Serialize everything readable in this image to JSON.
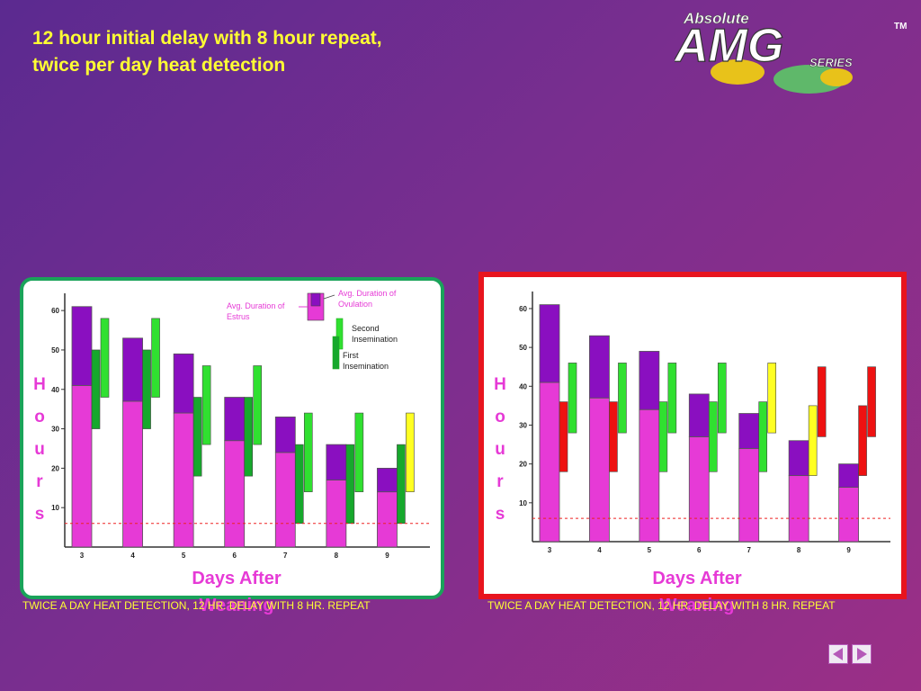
{
  "header": {
    "title_line1": "12 hour initial delay with 8 hour repeat,",
    "title_line2": "twice per day heat detection"
  },
  "logo": {
    "top": "Absolute",
    "main": "AMG",
    "sub": "SERIES",
    "tm": "TM"
  },
  "axis_labels": {
    "hours_letters": [
      "H",
      "o",
      "u",
      "r",
      "s"
    ],
    "days_line1": "Days After",
    "days_line2": "Weaning"
  },
  "legend": {
    "estrus": "Avg. Duration of Estrus",
    "ovulation": "Avg. Duration of Ovulation",
    "second": "Second Insemination",
    "first": "First Insemination"
  },
  "captions": {
    "left": "TWICE A DAY HEAT DETECTION, 12 HR. DELAY WITH 8 HR. REPEAT",
    "right": "TWICE A DAY HEAT DETECTION, 12 HR. DELAY WITH 8 HR. REPEAT"
  },
  "colors": {
    "estrus_pink": "#e63ad6",
    "ovulation_purple": "#8a0fc0",
    "first_green": "#16a82c",
    "second_green": "#30e030",
    "yellow": "#ffff22",
    "red": "#ee1111",
    "threshold": "#ee2222"
  },
  "chart_data": [
    {
      "type": "bar",
      "ylim": [
        0,
        63
      ],
      "yticks": [
        10,
        20,
        30,
        40,
        50,
        60
      ],
      "ytick_labels": [
        "10",
        "20",
        "30",
        "40",
        "50",
        "60"
      ],
      "categories": [
        "3",
        "4",
        "5",
        "6",
        "7",
        "8",
        "9"
      ],
      "threshold": 6,
      "estrus_total": [
        61,
        53,
        49,
        38,
        33,
        26,
        20
      ],
      "estrus_lower": [
        41,
        37,
        34,
        27,
        24,
        17,
        14
      ],
      "first_insemination": [
        [
          30,
          50
        ],
        [
          30,
          50
        ],
        [
          18,
          38
        ],
        [
          18,
          38
        ],
        [
          6,
          26
        ],
        [
          6,
          26
        ],
        [
          6,
          26
        ]
      ],
      "second_insemination": [
        [
          38,
          58
        ],
        [
          38,
          58
        ],
        [
          26,
          46
        ],
        [
          26,
          46
        ],
        [
          14,
          34
        ],
        [
          14,
          34
        ],
        [
          14,
          34
        ]
      ],
      "second_colors": [
        "green",
        "green",
        "green",
        "green",
        "green",
        "green",
        "yellow"
      ]
    },
    {
      "type": "bar",
      "ylim": [
        0,
        63
      ],
      "yticks": [
        10,
        20,
        30,
        40,
        50,
        60
      ],
      "ytick_labels": [
        "10",
        "20",
        "30",
        "40",
        "50",
        "60"
      ],
      "categories": [
        "3",
        "4",
        "5",
        "6",
        "7",
        "8",
        "9"
      ],
      "threshold": 6,
      "estrus_total": [
        61,
        53,
        49,
        38,
        33,
        26,
        20
      ],
      "estrus_lower": [
        41,
        37,
        34,
        27,
        24,
        17,
        14
      ],
      "first_insemination": [
        [
          18,
          36
        ],
        [
          18,
          36
        ],
        [
          18,
          36
        ],
        [
          18,
          36
        ],
        [
          18,
          36
        ],
        [
          17,
          35
        ],
        [
          17,
          35
        ]
      ],
      "second_insemination": [
        [
          28,
          46
        ],
        [
          28,
          46
        ],
        [
          28,
          46
        ],
        [
          28,
          46
        ],
        [
          28,
          46
        ],
        [
          27,
          45
        ],
        [
          27,
          45
        ]
      ],
      "first_colors": [
        "red",
        "red",
        "green",
        "green",
        "green",
        "yellow",
        "red"
      ],
      "second_colors": [
        "green",
        "green",
        "green",
        "green",
        "yellow",
        "red",
        "red"
      ]
    }
  ]
}
